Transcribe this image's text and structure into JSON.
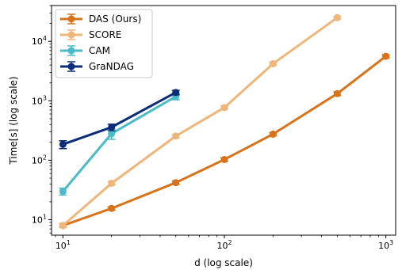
{
  "chart_data": {
    "type": "line",
    "xlabel": "d (log scale)",
    "ylabel": "Time[s] (log scale)",
    "x_scale": "log",
    "y_scale": "log",
    "xlim": [
      8.5,
      1150
    ],
    "ylim": [
      5.5,
      40000
    ],
    "grid": false,
    "legend_position": "top-left",
    "x_ticks": [
      {
        "value": 10,
        "base": "10",
        "exp": "1"
      },
      {
        "value": 100,
        "base": "10",
        "exp": "2"
      },
      {
        "value": 1000,
        "base": "10",
        "exp": "3"
      }
    ],
    "y_ticks": [
      {
        "value": 10,
        "base": "10",
        "exp": "1"
      },
      {
        "value": 100,
        "base": "10",
        "exp": "2"
      },
      {
        "value": 1000,
        "base": "10",
        "exp": "3"
      },
      {
        "value": 10000,
        "base": "10",
        "exp": "4"
      }
    ],
    "series": [
      {
        "name": "DAS (Ours)",
        "color": "#d9731a",
        "x": [
          10,
          20,
          50,
          100,
          200,
          500,
          1000
        ],
        "y": [
          8,
          15.5,
          42,
          103,
          275,
          1320,
          5600
        ],
        "err": [
          0.6,
          1.0,
          3.0,
          7.0,
          18.0,
          100.0,
          350.0
        ]
      },
      {
        "name": "SCORE",
        "color": "#efb67a",
        "x": [
          10,
          20,
          50,
          100,
          200,
          500
        ],
        "y": [
          8,
          41,
          255,
          770,
          4200,
          25000
        ],
        "err": [
          0.6,
          3.0,
          15.0,
          50.0,
          250.0,
          1300.0
        ]
      },
      {
        "name": "CAM",
        "color": "#4bbac9",
        "x": [
          10,
          20,
          50
        ],
        "y": [
          30,
          280,
          1180
        ],
        "err": [
          4.0,
          55.0,
          140.0
        ]
      },
      {
        "name": "GraNDAG",
        "color": "#0c2d7a",
        "x": [
          10,
          20,
          50
        ],
        "y": [
          185,
          360,
          1380
        ],
        "err": [
          28.0,
          45.0,
          120.0
        ]
      }
    ]
  }
}
